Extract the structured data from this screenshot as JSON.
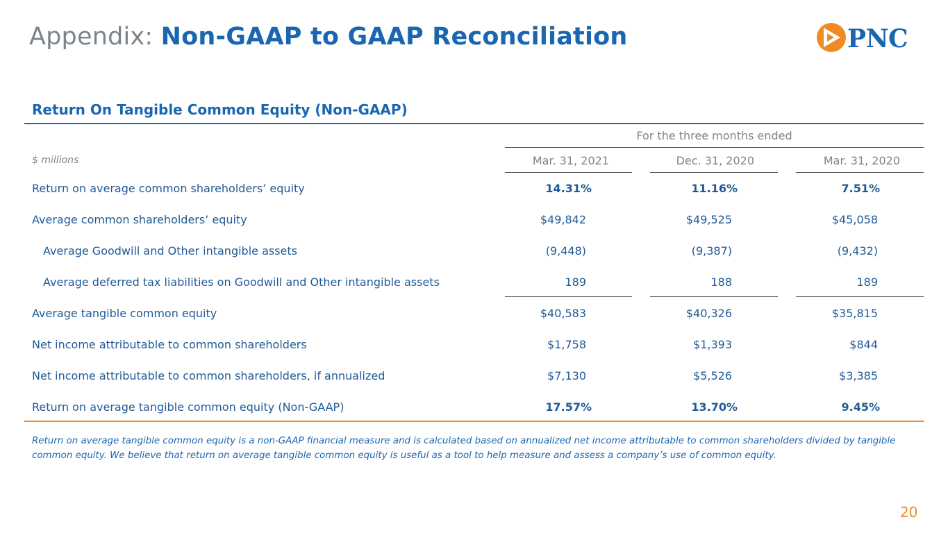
{
  "header": {
    "prefix": "Appendix:",
    "title": "Non-GAAP to GAAP Reconciliation",
    "logo_text": "PNC"
  },
  "section_title": "Return On Tangible Common Equity (Non-GAAP)",
  "table": {
    "period_header": "For the three months ended",
    "units": "$ millions",
    "columns": [
      "Mar. 31, 2021",
      "Dec. 31, 2020",
      "Mar. 31, 2020"
    ],
    "rows": [
      {
        "label": "Return on average common shareholders’ equity",
        "values": [
          "14.31%",
          "11.16%",
          "7.51%"
        ],
        "bold": true
      },
      {
        "label": "Average common shareholders’ equity",
        "values": [
          "$49,842",
          "$49,525",
          "$45,058"
        ]
      },
      {
        "label": "Average Goodwill and Other intangible assets",
        "values": [
          "(9,448)",
          "(9,387)",
          "(9,432)"
        ],
        "indent": true
      },
      {
        "label": "Average deferred tax liabilities on Goodwill and Other intangible assets",
        "values": [
          "189",
          "188",
          "189"
        ],
        "indent": true
      },
      {
        "label": "Average tangible common equity",
        "values": [
          "$40,583",
          "$40,326",
          "$35,815"
        ]
      },
      {
        "label": "Net income attributable to common shareholders",
        "values": [
          "$1,758",
          "$1,393",
          "$844"
        ]
      },
      {
        "label": "Net income attributable to common shareholders, if annualized",
        "values": [
          "$7,130",
          "$5,526",
          "$3,385"
        ]
      },
      {
        "label": "Return on average tangible common equity (Non-GAAP)",
        "values": [
          "17.57%",
          "13.70%",
          "9.45%"
        ],
        "bold": true
      }
    ]
  },
  "footnote": "Return on average tangible common equity is a non-GAAP financial measure and is calculated based on annualized net income attributable to common shareholders divided by tangible common equity. We believe that return on average tangible common equity is useful as a tool to help measure and assess a company’s use of common equity.",
  "page_number": "20",
  "colors": {
    "brand_blue": "#1b66b1",
    "accent_orange": "#f08a24",
    "gray": "#7d8489"
  }
}
